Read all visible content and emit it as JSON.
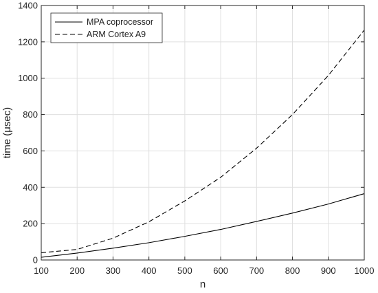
{
  "chart_data": {
    "type": "line",
    "xlabel": "n",
    "ylabel": "time (μsec)",
    "xlim": [
      100,
      1000
    ],
    "ylim": [
      0,
      1400
    ],
    "xticks": [
      "100",
      "200",
      "300",
      "400",
      "500",
      "600",
      "700",
      "800",
      "900",
      "1000"
    ],
    "yticks": [
      "0",
      "200",
      "400",
      "600",
      "800",
      "1000",
      "1200",
      "1400"
    ],
    "grid": true,
    "legend_position": "top-left",
    "x": [
      100,
      200,
      300,
      400,
      500,
      600,
      700,
      800,
      900,
      1000
    ],
    "series": [
      {
        "name": "MPA coprocessor",
        "style": "solid",
        "color": "#000000",
        "values": [
          15,
          38,
          65,
          95,
          130,
          168,
          212,
          258,
          308,
          365
        ]
      },
      {
        "name": "ARM Cortex A9",
        "style": "dashed",
        "color": "#000000",
        "values": [
          40,
          58,
          120,
          210,
          325,
          455,
          615,
          800,
          1015,
          1265
        ]
      }
    ]
  }
}
